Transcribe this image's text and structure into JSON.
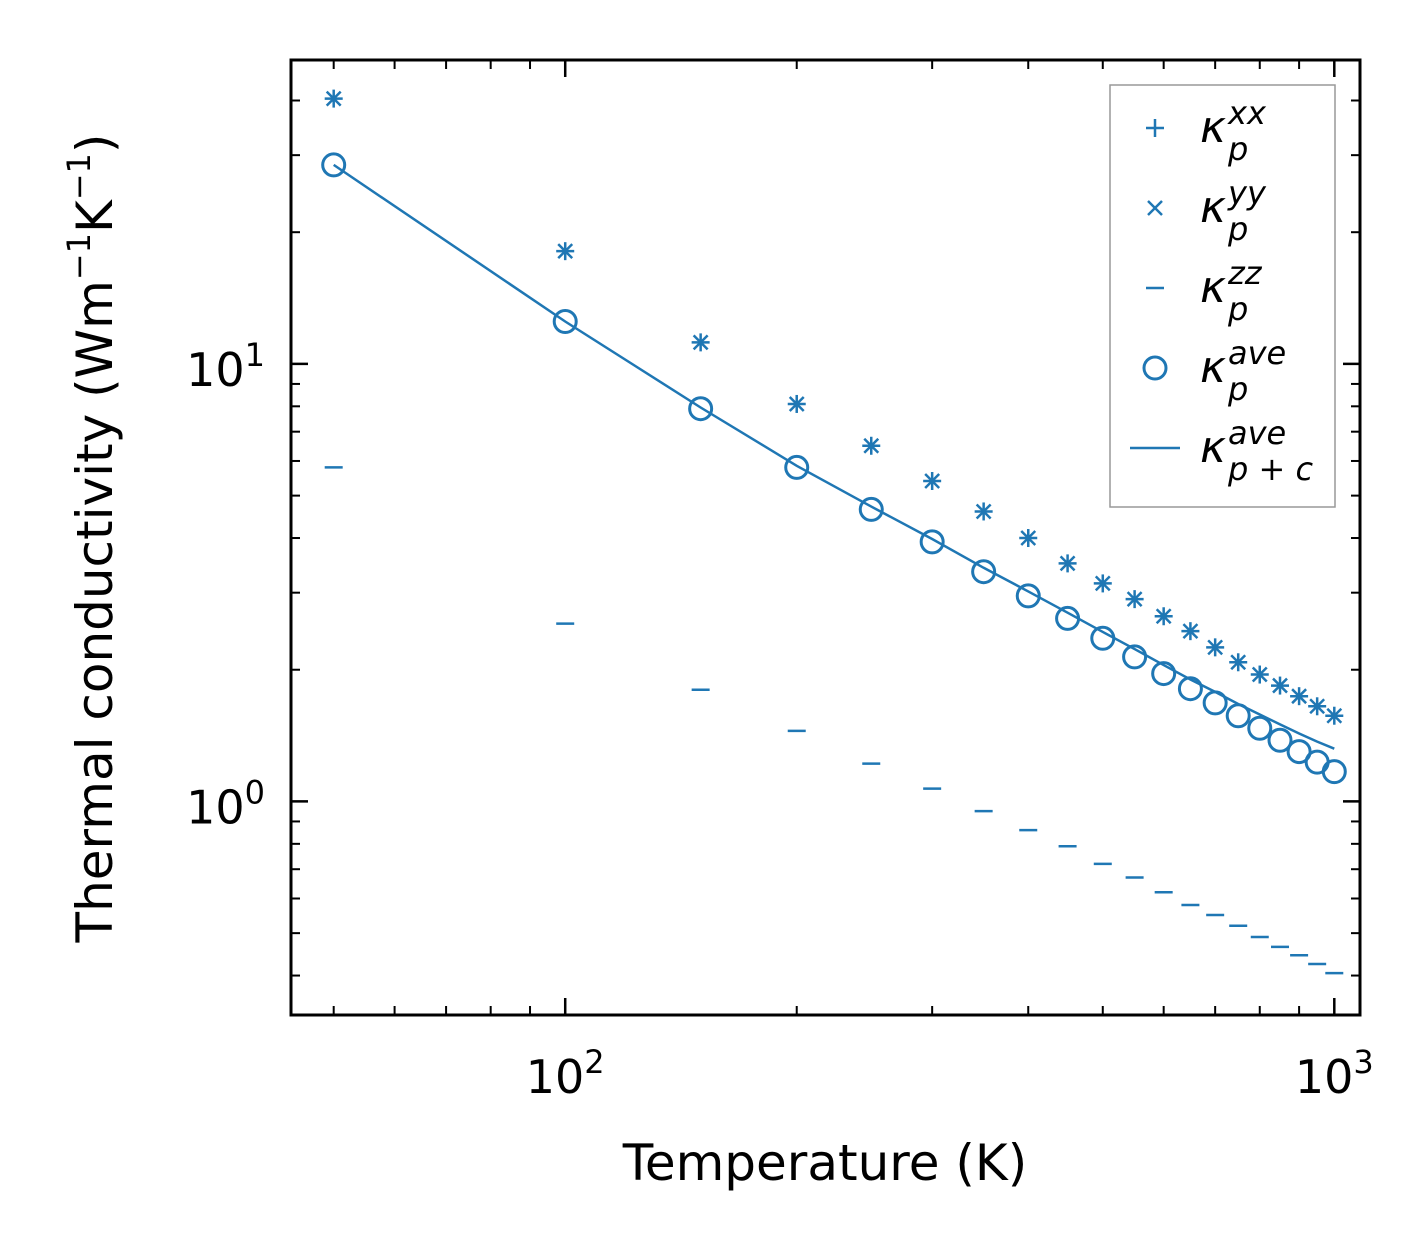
{
  "chart_data": {
    "type": "scatter",
    "title": "",
    "xlabel": "Temperature (K)",
    "ylabel_parts": {
      "base": "Thermal conductivity (Wm",
      "exp1": "−1",
      "mid": "K",
      "exp2": "−1",
      "end": ")"
    },
    "xscale": "log",
    "yscale": "log",
    "xlim": [
      44,
      1080
    ],
    "ylim": [
      0.325,
      49.5
    ],
    "x_major_ticks": [
      {
        "value": 100,
        "base": "10",
        "exp": "2"
      },
      {
        "value": 1000,
        "base": "10",
        "exp": "3"
      }
    ],
    "y_major_ticks": [
      {
        "value": 1,
        "base": "10",
        "exp": "0"
      },
      {
        "value": 10,
        "base": "10",
        "exp": "1"
      }
    ],
    "x_minor_ticks": [
      50,
      60,
      70,
      80,
      90,
      200,
      300,
      400,
      500,
      600,
      700,
      800,
      900
    ],
    "y_minor_ticks": [
      0.4,
      0.5,
      0.6,
      0.7,
      0.8,
      0.9,
      2,
      3,
      4,
      5,
      6,
      7,
      8,
      9,
      20,
      30,
      40
    ],
    "x": [
      50,
      100,
      150,
      200,
      250,
      300,
      350,
      400,
      450,
      500,
      550,
      600,
      650,
      700,
      750,
      800,
      850,
      900,
      950,
      1000
    ],
    "series": [
      {
        "name": "kappa_p^xx",
        "marker": "plus",
        "values": [
          40.4,
          18.1,
          11.2,
          8.1,
          6.5,
          5.4,
          4.6,
          4.0,
          3.5,
          3.15,
          2.9,
          2.65,
          2.45,
          2.25,
          2.08,
          1.95,
          1.84,
          1.74,
          1.65,
          1.57
        ]
      },
      {
        "name": "kappa_p^yy",
        "marker": "x",
        "values": [
          40.4,
          18.1,
          11.2,
          8.1,
          6.5,
          5.4,
          4.6,
          4.0,
          3.5,
          3.15,
          2.9,
          2.65,
          2.45,
          2.25,
          2.08,
          1.95,
          1.84,
          1.74,
          1.65,
          1.57
        ]
      },
      {
        "name": "kappa_p^zz",
        "marker": "hline",
        "values": [
          5.8,
          2.55,
          1.8,
          1.45,
          1.22,
          1.07,
          0.95,
          0.86,
          0.79,
          0.72,
          0.67,
          0.62,
          0.58,
          0.55,
          0.52,
          0.49,
          0.465,
          0.445,
          0.425,
          0.405
        ]
      },
      {
        "name": "kappa_p^ave",
        "marker": "circle",
        "values": [
          28.5,
          12.5,
          7.9,
          5.8,
          4.65,
          3.92,
          3.35,
          2.95,
          2.62,
          2.36,
          2.14,
          1.96,
          1.81,
          1.68,
          1.57,
          1.47,
          1.38,
          1.3,
          1.23,
          1.17
        ]
      },
      {
        "name": "kappa_p+c^ave",
        "marker": "line",
        "values": [
          28.5,
          12.5,
          7.95,
          5.85,
          4.72,
          3.98,
          3.42,
          3.02,
          2.7,
          2.44,
          2.23,
          2.05,
          1.9,
          1.78,
          1.67,
          1.58,
          1.5,
          1.43,
          1.37,
          1.32
        ]
      }
    ],
    "legend": {
      "position": "top-right",
      "entries": [
        {
          "marker": "plus",
          "base": "κ",
          "sup": "xx",
          "sub": "p"
        },
        {
          "marker": "x",
          "base": "κ",
          "sup": "yy",
          "sub": "p"
        },
        {
          "marker": "hline",
          "base": "κ",
          "sup": "zz",
          "sub": "p"
        },
        {
          "marker": "circle",
          "base": "κ",
          "sup": "ave",
          "sub": "p"
        },
        {
          "marker": "line",
          "base": "κ",
          "sup": "ave",
          "sub": "p + c"
        }
      ]
    },
    "colors": {
      "series": "#1f77b4",
      "axes": "#000000",
      "legend_border": "#999999"
    }
  }
}
